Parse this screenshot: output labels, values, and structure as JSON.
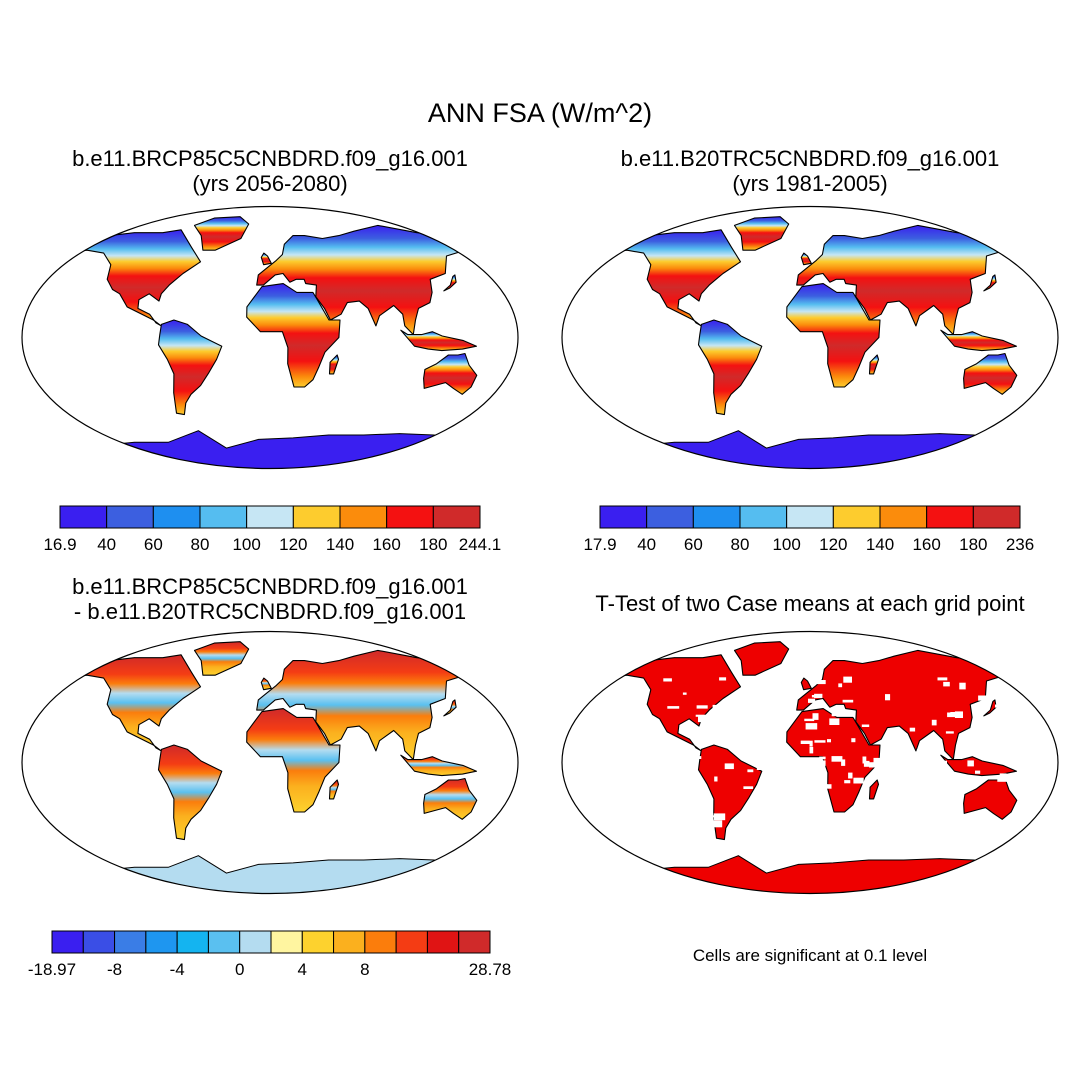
{
  "title": "ANN FSA (W/m^2)",
  "panels": [
    {
      "id": "p1",
      "title_line1": "b.e11.BRCP85C5CNBDRD.f09_g16.001",
      "title_line2": "(yrs 2056-2080)",
      "colorbar": {
        "colors": [
          "#3a1ff0",
          "#3c5fe0",
          "#1e8ff0",
          "#55bdf0",
          "#c6e6f4",
          "#fdcc2e",
          "#fb8c0c",
          "#f41111",
          "#d02a2a"
        ],
        "labels": [
          "16.9",
          "40",
          "60",
          "80",
          "100",
          "120",
          "140",
          "160",
          "180",
          "244.1"
        ]
      }
    },
    {
      "id": "p2",
      "title_line1": "b.e11.B20TRC5CNBDRD.f09_g16.001",
      "title_line2": "(yrs 1981-2005)",
      "colorbar": {
        "colors": [
          "#3a1ff0",
          "#3c5fe0",
          "#1e8ff0",
          "#55bdf0",
          "#c6e6f4",
          "#fdcc2e",
          "#fb8c0c",
          "#f41111",
          "#d02a2a"
        ],
        "labels": [
          "17.9",
          "40",
          "60",
          "80",
          "100",
          "120",
          "140",
          "160",
          "180",
          "236"
        ]
      }
    },
    {
      "id": "p3",
      "title_line1": "b.e11.BRCP85C5CNBDRD.f09_g16.001",
      "title_line2": "- b.e11.B20TRC5CNBDRD.f09_g16.001",
      "colorbar": {
        "colors": [
          "#3a1ff0",
          "#3a4ee6",
          "#3a7de6",
          "#1e96f0",
          "#14b4f0",
          "#5ac0f0",
          "#b4dcf0",
          "#fff5a0",
          "#fdd22e",
          "#fbb01e",
          "#fb7d0c",
          "#f43c14",
          "#e01414",
          "#d02a2a"
        ],
        "labels": [
          "-18.97",
          "-8",
          "-4",
          "0",
          "4",
          "8",
          "28.78"
        ],
        "label_boundaries": [
          0,
          2,
          4,
          6,
          8,
          10,
          14
        ]
      }
    },
    {
      "id": "p4",
      "title_line1": "T-Test of two Case means at each grid point",
      "note": "Cells are significant at 0.1 level",
      "colors": {
        "significant": "#ee0000"
      }
    }
  ]
}
